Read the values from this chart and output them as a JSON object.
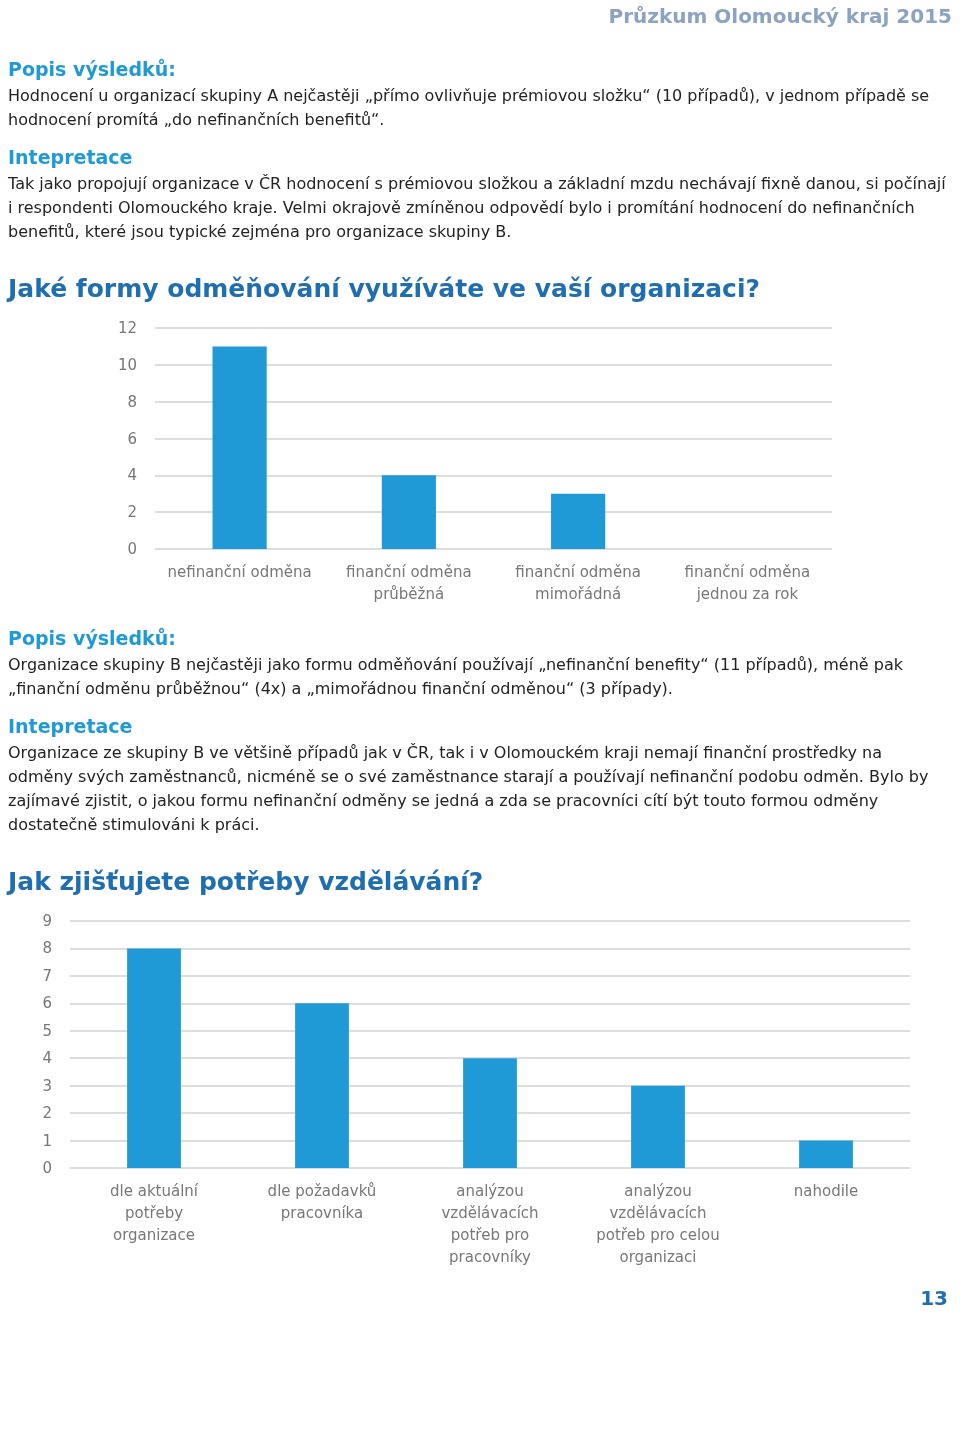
{
  "chart_data": [
    {
      "type": "other",
      "title": "Průzkum Olomoucký kraj 2015",
      "annotations": [
        "Popis výsledků:",
        "Hodnocení u organizací skupiny A nejčastěji „přímo ovlivňuje prémiovou složku“ (10 případů), v jednom případě se hodnocení promítá „do nefinančních benefitů“.",
        "Intepretace",
        "Tak jako propojují organizace v ČR hodnocení s prémiovou složkou a základní mzdu nechávají fixně danou, si počínají i respondenti Olomouckého kraje. Velmi okrajově zmíněnou odpovědí bylo i promítání hodnocení do nefinančních benefitů, které jsou typické zejména pro organizace skupiny B."
      ]
    },
    {
      "type": "bar",
      "title": "Jaké formy odměňování využíváte ve vaší organizaci?",
      "categories": [
        "nefinanční odměna",
        "finanční odměna\nprůběžná",
        "finanční odměna\nmimořádná",
        "finanční odměna\njednou za rok"
      ],
      "values": [
        11,
        4,
        3,
        0
      ],
      "color": "#1f9ad6",
      "ylim": [
        0,
        12
      ],
      "yticks": [
        0,
        2,
        4,
        6,
        8,
        10,
        12
      ],
      "grid": "y",
      "annotations": [
        "Popis výsledků:",
        "Organizace skupiny B nejčastěji jako formu odměňování používají „nefinanční benefity“ (11 případů), méně pak „finanční odměnu průběžnou“ (4x) a „mimořádnou finanční odměnou“ (3 případy).",
        "Intepretace",
        "Organizace ze skupiny B ve většině případů jak v ČR, tak i v Olomouckém kraji nemají finanční prostředky na odměny svých zaměstnanců, nicméně se o své zaměstnance starají a používají nefinanční podobu odměn. Bylo by zajímavé zjistit, o jakou formu nefinanční odměny se jedná a zda se pracovníci cítí být touto formou odměny dostatečně stimulováni k práci."
      ]
    },
    {
      "type": "bar",
      "title": "Jak zjišťujete potřeby vzdělávání?",
      "categories": [
        "dle aktuální\npotřeby\norganizace",
        "dle požadavků\npracovníka",
        "analýzou\nvzdělávacích\npotřeb pro\npracovníky",
        "analýzou\nvzdělávacích\npotřeb pro celou\norganizaci",
        "nahodile"
      ],
      "values": [
        8,
        6,
        4,
        3,
        1
      ],
      "color": "#1f9ad6",
      "ylim": [
        0,
        9
      ],
      "yticks": [
        0,
        1,
        2,
        3,
        4,
        5,
        6,
        7,
        8,
        9
      ],
      "grid": "y",
      "annotations": [
        "13"
      ]
    }
  ]
}
